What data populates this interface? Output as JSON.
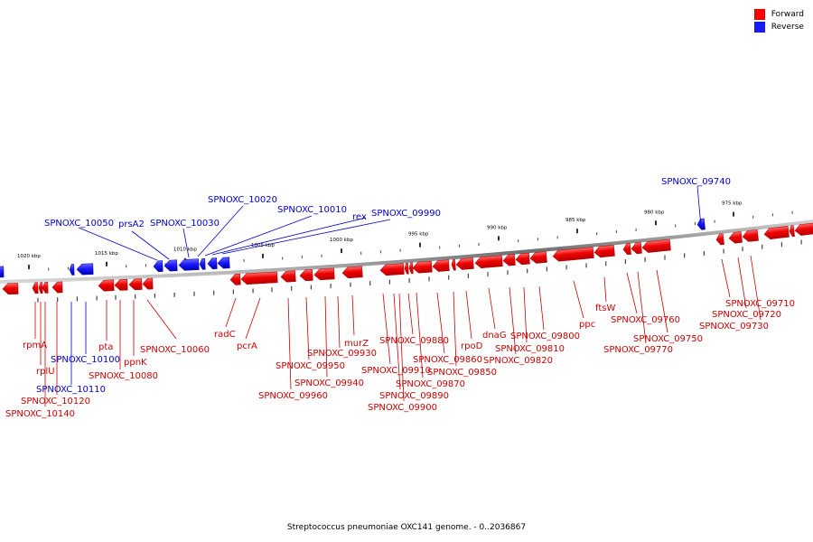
{
  "legend": {
    "forward_label": "Forward",
    "reverse_label": "Reverse",
    "forward_color": "#ff0000",
    "reverse_color": "#1a1aff"
  },
  "caption": "Streptococcus pneumoniae OXC141 genome. - 0..2036867",
  "ticks": [
    {
      "label": "1020 kbp",
      "major": true
    },
    {
      "label": "1015 kbp",
      "major": true
    },
    {
      "label": "1010 kbp",
      "major": true
    },
    {
      "label": "1005 kbp",
      "major": true
    },
    {
      "label": "1000 kbp",
      "major": true
    },
    {
      "label": "995 kbp",
      "major": true
    },
    {
      "label": "990 kbp",
      "major": true
    },
    {
      "label": "985 kbp",
      "major": true
    },
    {
      "label": "980 kbp",
      "major": true
    },
    {
      "label": "975 kbp",
      "major": true
    }
  ],
  "gene_labels": [
    {
      "name": "SPNOXC_10050",
      "strand": "reverse"
    },
    {
      "name": "prsA2",
      "strand": "reverse"
    },
    {
      "name": "SPNOXC_10030",
      "strand": "reverse"
    },
    {
      "name": "SPNOXC_10020",
      "strand": "reverse"
    },
    {
      "name": "SPNOXC_10010",
      "strand": "reverse"
    },
    {
      "name": "rex",
      "strand": "reverse"
    },
    {
      "name": "SPNOXC_09990",
      "strand": "reverse"
    },
    {
      "name": "SPNOXC_09740",
      "strand": "reverse"
    },
    {
      "name": "rpmA",
      "strand": "forward"
    },
    {
      "name": "rplU",
      "strand": "forward"
    },
    {
      "name": "SPNOXC_10110",
      "strand": "reverse"
    },
    {
      "name": "SPNOXC_10120",
      "strand": "forward"
    },
    {
      "name": "SPNOXC_10140",
      "strand": "forward"
    },
    {
      "name": "SPNOXC_10100",
      "strand": "reverse"
    },
    {
      "name": "pta",
      "strand": "forward"
    },
    {
      "name": "ppnK",
      "strand": "forward"
    },
    {
      "name": "SPNOXC_10080",
      "strand": "forward"
    },
    {
      "name": "SPNOXC_10060",
      "strand": "forward"
    },
    {
      "name": "radC",
      "strand": "forward"
    },
    {
      "name": "pcrA",
      "strand": "forward"
    },
    {
      "name": "SPNOXC_09960",
      "strand": "forward"
    },
    {
      "name": "SPNOXC_09950",
      "strand": "forward"
    },
    {
      "name": "SPNOXC_09940",
      "strand": "forward"
    },
    {
      "name": "SPNOXC_09930",
      "strand": "forward"
    },
    {
      "name": "murZ",
      "strand": "forward"
    },
    {
      "name": "SPNOXC_09880",
      "strand": "forward"
    },
    {
      "name": "SPNOXC_09910",
      "strand": "forward"
    },
    {
      "name": "SPNOXC_09870",
      "strand": "forward"
    },
    {
      "name": "SPNOXC_09890",
      "strand": "forward"
    },
    {
      "name": "SPNOXC_09900",
      "strand": "forward"
    },
    {
      "name": "SPNOXC_09860",
      "strand": "forward"
    },
    {
      "name": "SPNOXC_09850",
      "strand": "forward"
    },
    {
      "name": "rpoD",
      "strand": "forward"
    },
    {
      "name": "dnaG",
      "strand": "forward"
    },
    {
      "name": "SPNOXC_09800",
      "strand": "forward"
    },
    {
      "name": "SPNOXC_09810",
      "strand": "forward"
    },
    {
      "name": "SPNOXC_09820",
      "strand": "forward"
    },
    {
      "name": "ppc",
      "strand": "forward"
    },
    {
      "name": "ftsW",
      "strand": "forward"
    },
    {
      "name": "SPNOXC_09760",
      "strand": "forward"
    },
    {
      "name": "SPNOXC_09750",
      "strand": "forward"
    },
    {
      "name": "SPNOXC_09770",
      "strand": "forward"
    },
    {
      "name": "SPNOXC_09710",
      "strand": "forward"
    },
    {
      "name": "SPNOXC_09720",
      "strand": "forward"
    },
    {
      "name": "SPNOXC_09730",
      "strand": "forward"
    }
  ]
}
